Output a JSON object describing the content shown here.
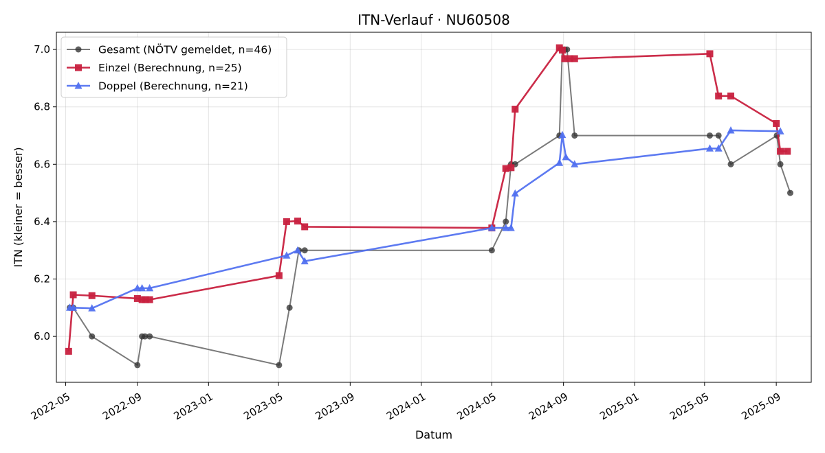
{
  "chart_data": {
    "type": "line",
    "title": "ITN-Verlauf · NU60508",
    "xlabel": "Datum",
    "ylabel": "ITN  (kleiner = besser)",
    "xlim": [
      "2022-04-15",
      "2025-10-31"
    ],
    "ylim": [
      5.84,
      7.06
    ],
    "grid": true,
    "legend_position": "top-left",
    "x_ticks": [
      "2022-05-01",
      "2022-09-01",
      "2023-01-01",
      "2023-05-01",
      "2023-09-01",
      "2024-01-01",
      "2024-05-01",
      "2024-09-01",
      "2025-01-01",
      "2025-05-01",
      "2025-09-01"
    ],
    "x_tick_labels": [
      "2022-05",
      "2022-09",
      "2023-01",
      "2023-05",
      "2023-09",
      "2024-01",
      "2024-05",
      "2024-09",
      "2025-01",
      "2025-05",
      "2025-09"
    ],
    "y_ticks": [
      6.0,
      6.2,
      6.4,
      6.6,
      6.8,
      7.0
    ],
    "y_tick_labels": [
      "6.0",
      "6.2",
      "6.4",
      "6.6",
      "6.8",
      "7.0"
    ],
    "series": [
      {
        "name": "Gesamt (NÖTV gemeldet, n=46)",
        "color": "#555555",
        "marker": "circle",
        "points": [
          [
            "2022-05-08",
            6.1
          ],
          [
            "2022-05-14",
            6.1
          ],
          [
            "2022-06-15",
            6.0
          ],
          [
            "2022-09-01",
            5.9
          ],
          [
            "2022-09-09",
            6.0
          ],
          [
            "2022-09-14",
            6.0
          ],
          [
            "2022-09-22",
            6.0
          ],
          [
            "2023-05-02",
            5.9
          ],
          [
            "2023-05-20",
            6.1
          ],
          [
            "2023-06-05",
            6.3
          ],
          [
            "2023-06-15",
            6.3
          ],
          [
            "2024-05-01",
            6.3
          ],
          [
            "2024-05-25",
            6.4
          ],
          [
            "2024-06-03",
            6.6
          ],
          [
            "2024-06-10",
            6.6
          ],
          [
            "2024-08-25",
            6.7
          ],
          [
            "2024-08-30",
            7.0
          ],
          [
            "2024-09-03",
            7.0
          ],
          [
            "2024-09-07",
            7.0
          ],
          [
            "2024-09-20",
            6.7
          ],
          [
            "2025-05-10",
            6.7
          ],
          [
            "2025-05-25",
            6.7
          ],
          [
            "2025-06-15",
            6.6
          ],
          [
            "2025-09-02",
            6.7
          ],
          [
            "2025-09-08",
            6.6
          ],
          [
            "2025-09-25",
            6.5
          ]
        ]
      },
      {
        "name": "Einzel (Berechnung, n=25)",
        "color": "#c8213f",
        "marker": "square",
        "points": [
          [
            "2022-05-06",
            5.948
          ],
          [
            "2022-05-14",
            6.145
          ],
          [
            "2022-06-15",
            6.142
          ],
          [
            "2022-09-01",
            6.132
          ],
          [
            "2022-09-09",
            6.128
          ],
          [
            "2022-09-15",
            6.128
          ],
          [
            "2022-09-22",
            6.128
          ],
          [
            "2023-05-02",
            6.212
          ],
          [
            "2023-05-15",
            6.4
          ],
          [
            "2023-06-03",
            6.402
          ],
          [
            "2023-06-15",
            6.382
          ],
          [
            "2024-05-01",
            6.378
          ],
          [
            "2024-05-25",
            6.585
          ],
          [
            "2024-06-03",
            6.588
          ],
          [
            "2024-06-10",
            6.792
          ],
          [
            "2024-08-25",
            7.006
          ],
          [
            "2024-08-30",
            6.998
          ],
          [
            "2024-09-03",
            6.968
          ],
          [
            "2024-09-12",
            6.968
          ],
          [
            "2024-09-20",
            6.968
          ],
          [
            "2025-05-10",
            6.985
          ],
          [
            "2025-05-25",
            6.838
          ],
          [
            "2025-06-15",
            6.838
          ],
          [
            "2025-09-01",
            6.742
          ],
          [
            "2025-09-08",
            6.645
          ],
          [
            "2025-09-20",
            6.645
          ]
        ]
      },
      {
        "name": "Doppel (Berechnung, n=21)",
        "color": "#4f6ff0",
        "marker": "triangle",
        "points": [
          [
            "2022-05-08",
            6.1
          ],
          [
            "2022-05-14",
            6.1
          ],
          [
            "2022-06-15",
            6.098
          ],
          [
            "2022-09-01",
            6.168
          ],
          [
            "2022-09-09",
            6.168
          ],
          [
            "2022-09-22",
            6.168
          ],
          [
            "2023-05-15",
            6.282
          ],
          [
            "2023-06-03",
            6.3
          ],
          [
            "2023-06-15",
            6.262
          ],
          [
            "2024-05-01",
            6.378
          ],
          [
            "2024-05-25",
            6.378
          ],
          [
            "2024-06-03",
            6.378
          ],
          [
            "2024-06-10",
            6.498
          ],
          [
            "2024-08-25",
            6.605
          ],
          [
            "2024-08-30",
            6.702
          ],
          [
            "2024-09-05",
            6.625
          ],
          [
            "2024-09-20",
            6.6
          ],
          [
            "2025-05-10",
            6.655
          ],
          [
            "2025-05-25",
            6.655
          ],
          [
            "2025-06-15",
            6.718
          ],
          [
            "2025-09-08",
            6.715
          ]
        ]
      }
    ]
  }
}
